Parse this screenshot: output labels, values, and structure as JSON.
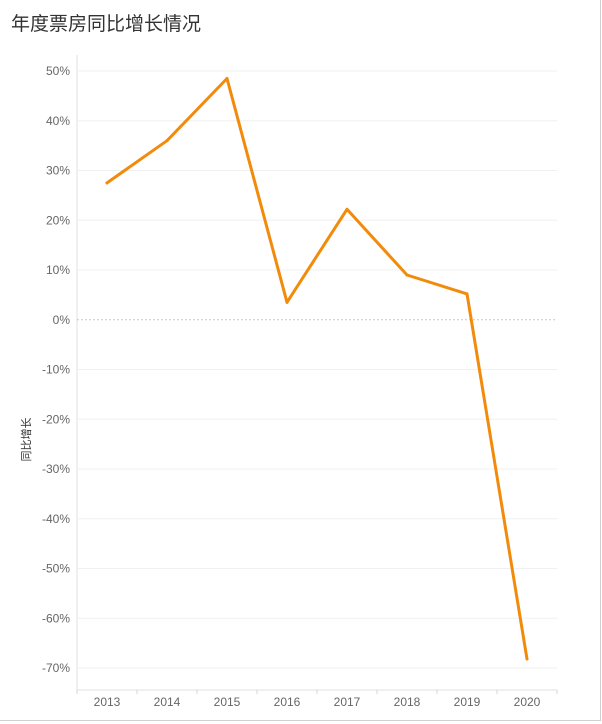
{
  "chart_data": {
    "type": "line",
    "title": "年度票房同比增长情况",
    "xlabel": "",
    "ylabel": "同比增长",
    "categories": [
      "2013",
      "2014",
      "2015",
      "2016",
      "2017",
      "2018",
      "2019",
      "2020"
    ],
    "series": [
      {
        "values": [
          27.5,
          36.0,
          48.5,
          3.5,
          22.2,
          9.0,
          5.2,
          -68.2
        ]
      }
    ],
    "ylim": [
      -70,
      50
    ],
    "yticks": [
      50,
      40,
      30,
      20,
      10,
      0,
      -10,
      -20,
      -30,
      -40,
      -50,
      -60,
      -70
    ],
    "ytick_labels": [
      "50%",
      "40%",
      "30%",
      "20%",
      "10%",
      "0%",
      "-10%",
      "-20%",
      "-30%",
      "-40%",
      "-50%",
      "-60%",
      "-70%"
    ],
    "grid": true,
    "colors": {
      "line": "#f28b0c",
      "grid": "#f0f0f0",
      "zero_line": "#c8c8c8"
    }
  }
}
